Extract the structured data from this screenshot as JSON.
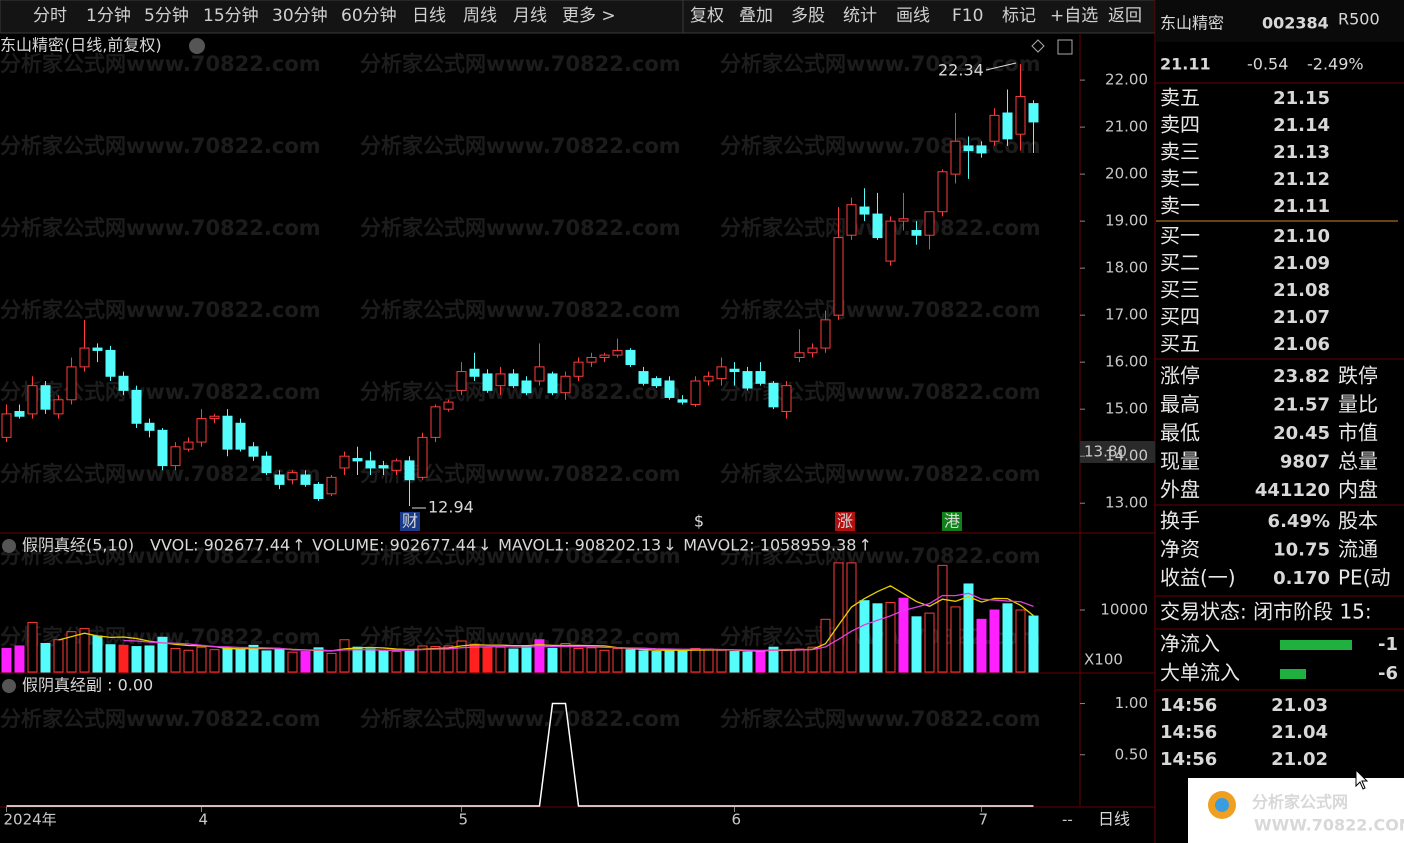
{
  "toolbar": {
    "periods": [
      "分时",
      "1分钟",
      "5分钟",
      "15分钟",
      "30分钟",
      "60分钟",
      "日线",
      "周线",
      "月线",
      "更多 >"
    ],
    "active_period": 6,
    "tools": [
      "复权",
      "叠加",
      "多股",
      "统计",
      "画线",
      "F10",
      "标记",
      "+自选",
      "返回"
    ]
  },
  "watermark": "分析家公式网www.70822.com",
  "main_chart": {
    "type": "candlestick",
    "title": "东山精密(日线,前复权)",
    "ylim": [
      12.43,
      22.47
    ],
    "yticks": [
      {
        "value": 13,
        "label": "13.00"
      },
      {
        "value": 14,
        "label": "14.00"
      },
      {
        "value": 15,
        "label": "15.00"
      },
      {
        "value": 16,
        "label": "16.00"
      },
      {
        "value": 17,
        "label": "17.00"
      },
      {
        "value": 18,
        "label": "18.00"
      },
      {
        "value": 19,
        "label": "19.00"
      },
      {
        "value": 20,
        "label": "20.00"
      },
      {
        "value": 21,
        "label": "21.00"
      },
      {
        "value": 22,
        "label": "22.00"
      }
    ],
    "up_color": "#ff3b3b",
    "down_color": "#54fcfc",
    "max_price_label": 22.34,
    "min_price_label": 12.94,
    "cursor_price": "13.80",
    "events": [
      "财",
      "$",
      "涨",
      "港"
    ],
    "open": [
      14.4,
      14.95,
      14.9,
      15.5,
      14.9,
      15.2,
      15.9,
      16.3,
      16.25,
      15.7,
      15.4,
      14.7,
      14.55,
      13.8,
      14.15,
      14.3,
      14.8,
      14.85,
      14.7,
      14.2,
      14.0,
      13.6,
      13.5,
      13.6,
      13.4,
      13.2,
      13.75,
      13.95,
      13.9,
      13.8,
      13.7,
      13.9,
      13.55,
      14.4,
      15.0,
      15.4,
      15.85,
      15.75,
      15.5,
      15.75,
      15.6,
      15.6,
      15.75,
      15.35,
      15.7,
      16.0,
      16.1,
      16.15,
      16.25,
      15.8,
      15.65,
      15.6,
      15.2,
      15.1,
      15.6,
      15.65,
      15.85,
      15.8,
      15.8,
      15.55,
      14.95,
      16.1,
      16.2,
      16.3,
      17.0,
      18.7,
      19.3,
      19.15,
      18.15,
      19.0,
      18.8,
      18.7,
      19.2,
      20.0,
      20.6,
      20.6,
      20.7,
      21.3,
      20.85,
      21.5
    ],
    "high": [
      15.1,
      15.1,
      15.7,
      15.6,
      15.3,
      16.1,
      16.9,
      16.4,
      16.35,
      15.8,
      15.5,
      14.8,
      14.6,
      14.3,
      14.4,
      15.0,
      14.9,
      15.0,
      14.8,
      14.3,
      14.1,
      13.7,
      13.7,
      13.7,
      13.45,
      13.6,
      14.1,
      14.2,
      14.1,
      13.9,
      13.95,
      14.0,
      14.5,
      15.1,
      15.2,
      16.0,
      16.2,
      15.85,
      15.9,
      15.85,
      15.7,
      16.4,
      15.8,
      15.8,
      16.1,
      16.2,
      16.2,
      16.5,
      16.3,
      15.9,
      15.7,
      15.7,
      15.3,
      15.7,
      15.8,
      16.1,
      16.0,
      15.9,
      16.0,
      15.6,
      15.6,
      16.7,
      16.4,
      17.1,
      19.3,
      19.5,
      19.7,
      19.6,
      19.1,
      19.6,
      19.0,
      19.2,
      20.1,
      21.3,
      20.8,
      20.7,
      21.4,
      21.8,
      22.34,
      21.57
    ],
    "low": [
      14.3,
      14.8,
      14.8,
      14.9,
      14.8,
      15.1,
      15.8,
      16.0,
      15.6,
      15.3,
      14.6,
      14.4,
      13.7,
      13.7,
      14.1,
      14.2,
      14.7,
      14.0,
      14.1,
      13.9,
      13.6,
      13.3,
      13.4,
      13.35,
      13.05,
      13.15,
      13.6,
      13.6,
      13.6,
      13.6,
      13.6,
      12.94,
      13.5,
      14.3,
      14.95,
      15.3,
      15.6,
      15.35,
      15.3,
      15.45,
      15.3,
      15.5,
      15.3,
      15.2,
      15.6,
      15.9,
      16.0,
      16.1,
      15.9,
      15.5,
      15.45,
      15.2,
      15.1,
      15.05,
      15.5,
      15.5,
      15.5,
      15.4,
      15.5,
      15.0,
      14.8,
      16.0,
      16.1,
      16.2,
      16.9,
      18.6,
      19.0,
      18.6,
      18.05,
      18.8,
      18.5,
      18.4,
      19.1,
      19.8,
      19.9,
      20.35,
      20.6,
      20.6,
      20.5,
      20.45
    ],
    "close": [
      14.9,
      14.85,
      15.5,
      15.0,
      15.2,
      15.9,
      16.3,
      16.25,
      15.7,
      15.4,
      14.7,
      14.55,
      13.8,
      14.2,
      14.3,
      14.8,
      14.85,
      14.15,
      14.15,
      14.0,
      13.65,
      13.4,
      13.65,
      13.4,
      13.1,
      13.55,
      14.0,
      13.9,
      13.75,
      13.75,
      13.9,
      13.5,
      14.4,
      15.05,
      15.15,
      15.8,
      15.7,
      15.4,
      15.75,
      15.5,
      15.35,
      15.9,
      15.35,
      15.7,
      16.0,
      16.1,
      16.15,
      16.25,
      15.95,
      15.55,
      15.5,
      15.25,
      15.15,
      15.6,
      15.7,
      15.9,
      15.8,
      15.45,
      15.55,
      15.05,
      15.5,
      16.2,
      16.3,
      16.9,
      18.65,
      19.35,
      19.15,
      18.65,
      19.0,
      19.05,
      18.7,
      19.2,
      20.05,
      20.7,
      20.5,
      20.45,
      21.25,
      20.75,
      21.65,
      21.11
    ]
  },
  "volume_chart": {
    "type": "bar",
    "title": "假阴真经(5,10)",
    "unit": "X100",
    "legend": [
      {
        "text": "VVOL: 902677.44",
        "arrow": "↑",
        "color": "#e8e8e8",
        "arrow_color": "#ff3030"
      },
      {
        "text": "VOLUME: 902677.44",
        "arrow": "↓",
        "color": "#e8d000",
        "arrow_color": "#54fcfc"
      },
      {
        "text": "MAVOL1: 908202.13",
        "arrow": "↓",
        "color": "#e8d000",
        "arrow_color": "#54fcfc"
      },
      {
        "text": "MAVOL2: 1058959.38",
        "arrow": "↑",
        "color": "#e040e0",
        "arrow_color": "#ff3030"
      }
    ],
    "ylim": [
      0,
      18065
    ],
    "yticks": [
      10000
    ],
    "palette": {
      "up": "#ff3b3b",
      "down": "#54fcfc",
      "red": "#ff2020",
      "magenta": "#ff20ff"
    },
    "values": [
      3800,
      4200,
      8000,
      4600,
      5200,
      6500,
      7000,
      5800,
      4400,
      4300,
      4100,
      4200,
      5600,
      3800,
      3500,
      4000,
      3600,
      3900,
      3700,
      4300,
      3400,
      3600,
      3200,
      3300,
      3900,
      3000,
      5200,
      4000,
      3700,
      3500,
      3300,
      3600,
      4200,
      4100,
      4200,
      5000,
      4500,
      3900,
      4000,
      3700,
      4200,
      5200,
      3800,
      4600,
      3800,
      3900,
      3500,
      3800,
      3600,
      3400,
      3300,
      3600,
      3400,
      3800,
      3700,
      3500,
      3300,
      3200,
      3400,
      4000,
      3600,
      3700,
      4000,
      8500,
      17600,
      17600,
      11500,
      11000,
      11200,
      11900,
      8900,
      9500,
      17200,
      10500,
      14200,
      8500,
      10000,
      11000,
      10000,
      9027
    ],
    "styles": [
      "magenta",
      "magenta",
      "up",
      "down",
      "up",
      "up",
      "up",
      "down",
      "down",
      "red",
      "down",
      "down",
      "down",
      "up",
      "up",
      "up",
      "up",
      "down",
      "down",
      "down",
      "down",
      "down",
      "up",
      "magenta",
      "down",
      "up",
      "up",
      "down",
      "down",
      "down",
      "up",
      "down",
      "up",
      "up",
      "up",
      "up",
      "red",
      "red",
      "up",
      "down",
      "down",
      "magenta",
      "down",
      "up",
      "up",
      "up",
      "up",
      "up",
      "down",
      "down",
      "down",
      "down",
      "down",
      "up",
      "up",
      "up",
      "down",
      "down",
      "magenta",
      "down",
      "up",
      "up",
      "up",
      "up",
      "up",
      "up",
      "down",
      "down",
      "up",
      "magenta",
      "down",
      "up",
      "up",
      "up",
      "down",
      "magenta",
      "magenta",
      "down",
      "up",
      "down"
    ],
    "series": [
      {
        "name": "MAVOL1",
        "color": "#e8d000",
        "values": [
          null,
          null,
          null,
          null,
          5160,
          5700,
          6260,
          5820,
          5580,
          5640,
          5400,
          4960,
          4720,
          4460,
          4280,
          4220,
          4100,
          3780,
          3740,
          3800,
          3780,
          3780,
          3640,
          3560,
          3480,
          3400,
          3720,
          3880,
          3960,
          3880,
          3700,
          3620,
          3660,
          3780,
          3880,
          4220,
          4400,
          4340,
          4340,
          4260,
          4260,
          4400,
          4300,
          4300,
          4300,
          4260,
          4220,
          3920,
          3800,
          3620,
          3520,
          3540,
          3500,
          3540,
          3560,
          3600,
          3540,
          3420,
          3420,
          3480,
          3500,
          3560,
          3660,
          4560,
          7560,
          10480,
          11840,
          12980,
          13900,
          12640,
          11360,
          10600,
          11740,
          11400,
          12160,
          11280,
          11880,
          11840,
          10760,
          9082
        ]
      },
      {
        "name": "MAVOL2",
        "color": "#e040e0",
        "values": [
          null,
          null,
          null,
          null,
          null,
          null,
          null,
          null,
          null,
          5070,
          5000,
          4820,
          4700,
          4640,
          4520,
          4320,
          4080,
          4040,
          3940,
          3940,
          3880,
          3820,
          3580,
          3530,
          3570,
          3420,
          3580,
          3590,
          3590,
          3510,
          3500,
          3510,
          3610,
          3690,
          3720,
          3920,
          4010,
          4060,
          4090,
          4030,
          4010,
          4120,
          4080,
          4140,
          4080,
          4050,
          3970,
          3930,
          3870,
          3840,
          3750,
          3710,
          3670,
          3670,
          3660,
          3620,
          3580,
          3520,
          3480,
          3540,
          3570,
          3580,
          3610,
          4060,
          5280,
          6580,
          7620,
          8340,
          9060,
          9920,
          10460,
          11040,
          12340,
          12320,
          12700,
          11760,
          11600,
          11440,
          11340,
          10590
        ]
      }
    ]
  },
  "sub_chart": {
    "type": "line",
    "title": "假阴真经副 : 0.00",
    "color": "#ffffff",
    "ylim": [
      0,
      1.22
    ],
    "yticks": [
      {
        "value": 0.5,
        "label": "0.50"
      },
      {
        "value": 1,
        "label": "1.00"
      }
    ],
    "values": [
      0,
      0,
      0,
      0,
      0,
      0,
      0,
      0,
      0,
      0,
      0,
      0,
      0,
      0,
      0,
      0,
      0,
      0,
      0,
      0,
      0,
      0,
      0,
      0,
      0,
      0,
      0,
      0,
      0,
      0,
      0,
      0,
      0,
      0,
      0,
      0,
      0,
      0,
      0,
      0,
      0,
      0,
      1,
      1,
      0,
      0,
      0,
      0,
      0,
      0,
      0,
      0,
      0,
      0,
      0,
      0,
      0,
      0,
      0,
      0,
      0,
      0,
      0,
      0,
      0,
      0,
      0,
      0,
      0,
      0,
      0,
      0,
      0,
      0,
      0,
      0,
      0,
      0,
      0,
      0
    ]
  },
  "x_axis": {
    "categories": [
      "2024年",
      null,
      null,
      null,
      null,
      null,
      null,
      null,
      null,
      null,
      null,
      null,
      null,
      null,
      null,
      "4",
      null,
      null,
      null,
      null,
      null,
      null,
      null,
      null,
      null,
      null,
      null,
      null,
      null,
      null,
      null,
      null,
      null,
      null,
      null,
      "5",
      null,
      null,
      null,
      null,
      null,
      null,
      null,
      null,
      null,
      null,
      null,
      null,
      null,
      null,
      null,
      null,
      null,
      null,
      null,
      null,
      "6",
      null,
      null,
      null,
      null,
      null,
      null,
      null,
      null,
      null,
      null,
      null,
      null,
      null,
      null,
      null,
      null,
      null,
      null,
      "7",
      null,
      null,
      null,
      null
    ],
    "extra": "--",
    "period": "日线"
  },
  "quote": {
    "name": "东山精密",
    "code": "002384",
    "tag": "R500",
    "price": "21.11",
    "change": "-0.54",
    "change_pct": "-2.49%",
    "sell": [
      {
        "label": "卖五",
        "price": "21.15"
      },
      {
        "label": "卖四",
        "price": "21.14"
      },
      {
        "label": "卖三",
        "price": "21.13"
      },
      {
        "label": "卖二",
        "price": "21.12"
      },
      {
        "label": "卖一",
        "price": "21.11"
      }
    ],
    "buy": [
      {
        "label": "买一",
        "price": "21.10"
      },
      {
        "label": "买二",
        "price": "21.09"
      },
      {
        "label": "买三",
        "price": "21.08"
      },
      {
        "label": "买四",
        "price": "21.07"
      },
      {
        "label": "买五",
        "price": "21.06"
      }
    ],
    "stats": [
      {
        "label": "涨停",
        "value": "23.82",
        "color": "#ff3b3b",
        "right": "跌停"
      },
      {
        "label": "最高",
        "value": "21.57",
        "color": "#20e040",
        "right": "量比"
      },
      {
        "label": "最低",
        "value": "20.45",
        "color": "#20e040",
        "right": "市值"
      },
      {
        "label": "现量",
        "value": "9807",
        "color": "#e020e0",
        "right": "总量"
      },
      {
        "label": "外盘",
        "value": "441120",
        "color": "#ff3b3b",
        "right": "内盘"
      }
    ],
    "stats2": [
      {
        "label": "换手",
        "value": "6.49%",
        "color": "#e8e8e8",
        "right": "股本"
      },
      {
        "label": "净资",
        "value": "10.75",
        "color": "#e8e8e8",
        "right": "流通"
      },
      {
        "label": "收益(一)",
        "value": "0.170",
        "color": "#e8e8e8",
        "right": "PE(动"
      }
    ],
    "status": "交易状态: 闭市阶段 15:",
    "flows": [
      {
        "label": "净流入",
        "value": "-1"
      },
      {
        "label": "大单流入",
        "value": "-6"
      }
    ],
    "ticks": [
      {
        "time": "14:56",
        "price": "21.03"
      },
      {
        "time": "14:56",
        "price": "21.04"
      },
      {
        "time": "14:56",
        "price": "21.02"
      }
    ]
  },
  "logo": {
    "title": "分析家公式网",
    "url": "WWW.70822.COM"
  }
}
